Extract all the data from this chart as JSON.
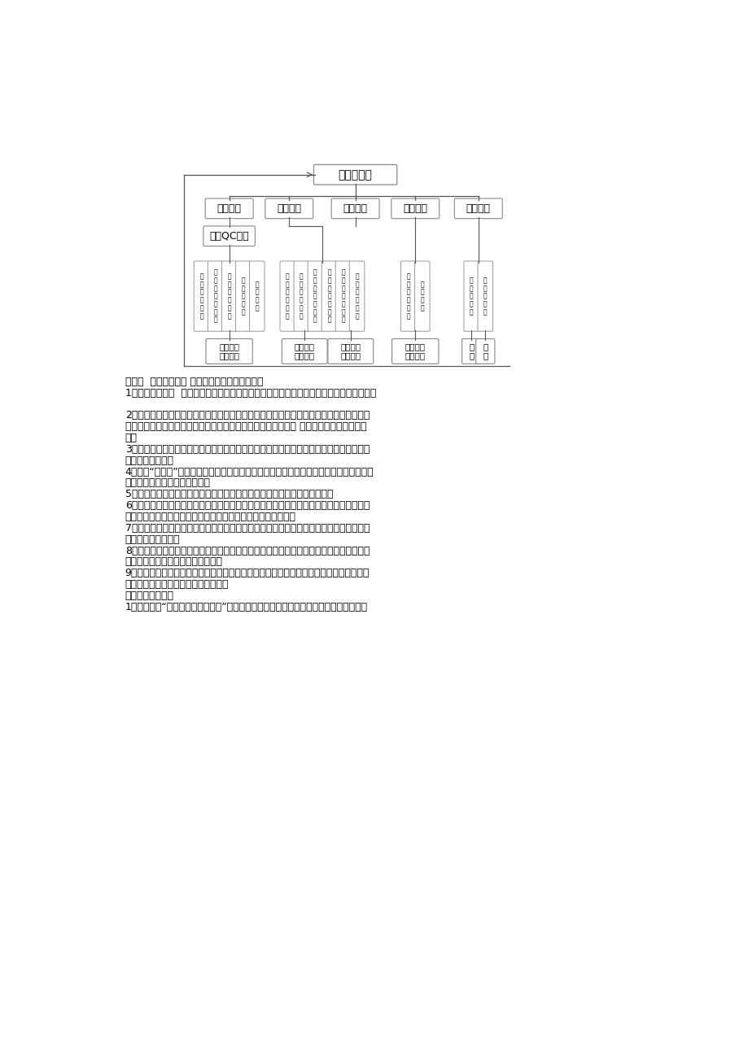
{
  "bg_color": "#ffffff",
  "title_box": "创优质工程",
  "level2_boxes": [
    "组织保证",
    "制度保证",
    "措施保证",
    "素质保证",
    "经济保证"
  ],
  "level3_box": "各级QC小组",
  "g1_labels": [
    "上\n级\n质\n量\n监\n督",
    "监\n理\n部\n质\n量\n控\n制",
    "工\n程\n部\n质\n量\n检",
    "项\n目\n部\n自\n检",
    "班\n组\n初\n检"
  ],
  "g2_labels": [
    "质\n量\n检\n查\n制\n度",
    "质\n量\n奖\n罚\n制\n定",
    "岗\n位\n质\n量\n责\n任\n制",
    "创\n优\n质\n工\n程\n措\n施",
    "标\n准\n化\n管\n理\n措\n施",
    "技\n术\n创\n新\n措\n施"
  ],
  "g3_labels": [
    "质\n量\n意\n识\n教\n育",
    "技\n术\n培\n训"
  ],
  "g4_labels": [
    "质\n量\n指\n标\n奖",
    "优\n质\n工\n程\n奖"
  ],
  "l5_label1": "质量管理\n联合攻关",
  "l5_label2": "目标划分\n各负其责",
  "l5_label3": "措施落实\n规范程序",
  "l5_label4": "思想教育\n技术培训",
  "l5_label5": "奖\n惩",
  "l5_label6": "优\n质",
  "text_lines": [
    "其次节  质量保证措施 一、执行下列质量管理制度",
    "1．质量活动日制  每周三定为质量活动日，在当天组织质量专题会，实施质量联检、评比。",
    "",
    "2．质量推翻制：坚持质量一票推翻制，管理人员所负责的质量方面出了问题，扣发奖金；",
    "施工分项没有达到规定标准，不预拨付工程款、工程量不得确认 质量没把握，不得接着施",
    "工。",
    "3．坚持样板制：全部工序施工前，必需先作样板，经各有关人员验收合格后，方可进行工",
    "序的大面积施工。",
    "4．坚持“三检制”：班组设自检员，施工队设专检人员，每道工序都要坚持自检、互检、交",
    "接检，否则不得进行下道工序。",
    "5．坚持方案先行制：每项工作有好用有效的书面技术措施，否则不得施工。",
    "6．坚持质量合格证制：每个部位施工完，应由质检人员进行检查，标出作业人员、质量数",
    "据及质量等级，合格部位贴上质量合格证，不合格者返工重做。",
    "7．坚持审核制：每一项工作至少有一个人进行审核，特殊对技术措施及施工实施，必需多",
    "道把关、双重保险。",
    "8．坚持标准化制：对工作做法，日常工作程序要制定标准。使之整齐划一，不得人为必改",
    "动。做到事事的标准，人人按标准。",
    "9．坚持质量目标管理制：依据本工程质量目标，制定具体的阶段目标及分部、分项工程质",
    "量目标，确保质量总目标的顺当实现。",
    "二、主要保证措施",
    "1、仔细贯彻“百年大计，质量第一”的方针，为用户着想，为业主服务，坚决听从监理工"
  ]
}
